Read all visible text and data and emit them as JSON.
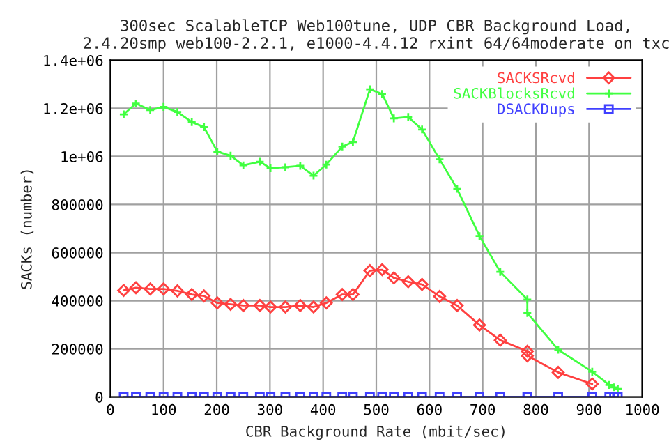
{
  "chart_data": {
    "type": "line",
    "title": "300sec ScalableTCP Web100tune, UDP CBR Background Load,",
    "subtitle": "2.4.20smp web100-2.2.1, e1000-4.4.12 rxint 64/64moderate on txc",
    "xlabel": "CBR Background Rate (mbit/sec)",
    "ylabel": "SACKs (number)",
    "x": [
      25,
      48,
      75,
      100,
      126,
      153,
      176,
      201,
      226,
      250,
      281,
      301,
      329,
      357,
      382,
      406,
      436,
      456,
      488,
      511,
      533,
      560,
      586,
      619,
      652,
      694,
      733,
      784,
      784,
      842,
      906,
      938,
      947,
      954
    ],
    "series": [
      {
        "name": "SACKSRcvd",
        "color": "#ff4040",
        "marker": "diamond",
        "values": [
          443000,
          454000,
          449000,
          449000,
          441000,
          426000,
          420000,
          391000,
          385000,
          380000,
          380000,
          374000,
          374000,
          380000,
          374000,
          391000,
          426000,
          426000,
          525000,
          529000,
          495000,
          479000,
          468000,
          418000,
          380000,
          299000,
          236000,
          190000,
          171000,
          102000,
          54000,
          null,
          null,
          null
        ]
      },
      {
        "name": "SACKBlocksRcvd",
        "color": "#40ff40",
        "marker": "cross",
        "values": [
          1175000,
          1220000,
          1193000,
          1206000,
          1185000,
          1143000,
          1122000,
          1020000,
          1003000,
          963000,
          978000,
          951000,
          955000,
          961000,
          920000,
          966000,
          1041000,
          1060000,
          1279000,
          1260000,
          1158000,
          1164000,
          1112000,
          988000,
          865000,
          669000,
          520000,
          405000,
          349000,
          196000,
          105000,
          50000,
          40000,
          33000
        ]
      },
      {
        "name": "DSACKDups",
        "color": "#4040ff",
        "marker": "square",
        "values": [
          0,
          0,
          0,
          0,
          0,
          0,
          0,
          0,
          0,
          0,
          0,
          0,
          0,
          0,
          0,
          0,
          0,
          0,
          0,
          0,
          0,
          0,
          0,
          0,
          0,
          0,
          0,
          0,
          0,
          0,
          0,
          0,
          0,
          0
        ]
      }
    ],
    "xlim": [
      0,
      1000
    ],
    "xticks": [
      0,
      100,
      200,
      300,
      400,
      500,
      600,
      700,
      800,
      900,
      1000
    ],
    "ylim": [
      0,
      1400000
    ],
    "yticks": [
      {
        "value": 0,
        "label": "0"
      },
      {
        "value": 200000,
        "label": "200000"
      },
      {
        "value": 400000,
        "label": "400000"
      },
      {
        "value": 600000,
        "label": "600000"
      },
      {
        "value": 800000,
        "label": "800000"
      },
      {
        "value": 1000000,
        "label": "1e+06"
      },
      {
        "value": 1200000,
        "label": "1.2e+06"
      },
      {
        "value": 1400000,
        "label": "1.4e+06"
      }
    ],
    "grid": true,
    "legend": "top right"
  }
}
